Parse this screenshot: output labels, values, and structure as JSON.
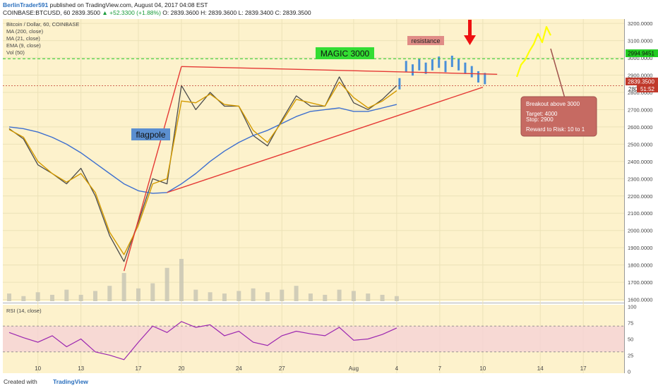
{
  "header": {
    "author": "BerlinTrader591",
    "published": "published on TradingView.com, August 04, 2017 04:08 EST",
    "symbol": "COINBASE:BTCUSD, 60",
    "price": "2839.3500",
    "change": "▲ +52.3300 (+1.88%)",
    "ohlc": "O: 2839.3600  H: 2839.3600  L: 2839.3400  C: 2839.3500"
  },
  "legend": {
    "title": "Bitcoin / Dollar, 60, COINBASE",
    "items": [
      "MA (200, close)",
      "MA (21, close)",
      "EMA (9, close)",
      "Vol (50)"
    ]
  },
  "annotations": {
    "magic": "MAGIC 3000",
    "flagpole": "flagpole",
    "resistance": "resistance",
    "callout": [
      "Breakout above 3000",
      "Target: 4000",
      "Stop: 2900",
      "Reward to Risk: 10 to 1"
    ]
  },
  "price_labels": {
    "magic_line": "2994.9451",
    "last": "2839.3500",
    "countdown": "51:52",
    "partial": "2800"
  },
  "rsi": {
    "title": "RSI (14, close)"
  },
  "footer": {
    "created": "Created with",
    "brand": "TradingView"
  },
  "colors": {
    "background": "#fdf2cc",
    "ma200": "#3d6fcf",
    "ma21": "#d39a00",
    "ema9": "#4b4b4b",
    "trendline": "#e53935",
    "magic_line": "#22cc22",
    "rsi": "#9c27b0",
    "projection": "#ffff00",
    "callout": "#c66a62",
    "consolidation": "#4a8fd8"
  },
  "chart_data": {
    "type": "line",
    "title": "Bitcoin / Dollar, 60, COINBASE",
    "x_tick_labels": [
      "10",
      "13",
      "17",
      "20",
      "24",
      "27",
      "Aug",
      "4",
      "7",
      "10",
      "14",
      "17"
    ],
    "y_tick_labels": [
      "3200.0000",
      "3100.0000",
      "3000.0000",
      "2900.0000",
      "2800.0000",
      "2700.0000",
      "2600.0000",
      "2500.0000",
      "2400.0000",
      "2300.0000",
      "2200.0000",
      "2100.0000",
      "2000.0000",
      "1900.0000",
      "1800.0000",
      "1700.0000",
      "1600.0000"
    ],
    "ylim": [
      1590,
      3225
    ],
    "x_dates": [
      "2017-07-08",
      "2017-07-09",
      "2017-07-10",
      "2017-07-11",
      "2017-07-12",
      "2017-07-13",
      "2017-07-14",
      "2017-07-15",
      "2017-07-16",
      "2017-07-17",
      "2017-07-18",
      "2017-07-19",
      "2017-07-20",
      "2017-07-21",
      "2017-07-22",
      "2017-07-23",
      "2017-07-24",
      "2017-07-25",
      "2017-07-26",
      "2017-07-27",
      "2017-07-28",
      "2017-07-29",
      "2017-07-30",
      "2017-07-31",
      "2017-08-01",
      "2017-08-02",
      "2017-08-03",
      "2017-08-04"
    ],
    "series": [
      {
        "name": "Bitcoin / Dollar, 60, COINBASE",
        "values": [
          2590,
          2530,
          2380,
          2330,
          2270,
          2360,
          2200,
          1970,
          1820,
          2050,
          2300,
          2270,
          2840,
          2700,
          2800,
          2720,
          2720,
          2550,
          2490,
          2640,
          2780,
          2720,
          2720,
          2890,
          2740,
          2700,
          2760,
          2839.35
        ]
      },
      {
        "name": "MA (200, close)",
        "values": [
          2600,
          2590,
          2570,
          2540,
          2500,
          2450,
          2390,
          2330,
          2270,
          2230,
          2215,
          2220,
          2270,
          2330,
          2400,
          2460,
          2510,
          2550,
          2580,
          2620,
          2660,
          2690,
          2700,
          2710,
          2690,
          2690,
          2710,
          2730
        ]
      },
      {
        "name": "MA (21, close)",
        "values": [
          2585,
          2540,
          2400,
          2330,
          2280,
          2330,
          2220,
          1990,
          1860,
          2030,
          2270,
          2300,
          2750,
          2740,
          2790,
          2730,
          2720,
          2580,
          2510,
          2630,
          2760,
          2740,
          2720,
          2860,
          2770,
          2710,
          2750,
          2810
        ]
      }
    ],
    "trendlines": [
      {
        "from": [
          "2017-07-16",
          1765
        ],
        "to": [
          "2017-07-20",
          2950
        ]
      },
      {
        "from": [
          "2017-07-20",
          2950
        ],
        "to": [
          "2017-08-11",
          2905
        ]
      },
      {
        "from": [
          "2017-07-19",
          2220
        ],
        "to": [
          "2017-08-10",
          2830
        ]
      }
    ],
    "consolidation": {
      "values": [
        2850,
        2950,
        2930,
        2960,
        2940,
        2960,
        2975,
        2950,
        2980,
        2960,
        2940,
        2920,
        2890,
        2880
      ]
    },
    "projection": {
      "values": [
        2890,
        2960,
        2990,
        3040,
        3080,
        3140,
        3090,
        3180,
        3130
      ]
    },
    "magic_level": 2994.9451,
    "rsi": {
      "x_tick_labels": [],
      "y_tick_labels": [
        "100",
        "75",
        "50",
        "25",
        "0"
      ],
      "ylim": [
        -3,
        103
      ],
      "values": [
        60,
        52,
        45,
        55,
        38,
        50,
        30,
        25,
        18,
        45,
        70,
        60,
        77,
        68,
        72,
        55,
        62,
        45,
        40,
        55,
        62,
        58,
        55,
        68,
        48,
        50,
        57,
        67
      ]
    },
    "volume": {
      "values": [
        6,
        4,
        7,
        5,
        9,
        5,
        8,
        12,
        22,
        10,
        14,
        26,
        33,
        9,
        7,
        6,
        8,
        10,
        7,
        9,
        12,
        6,
        5,
        9,
        8,
        6,
        5,
        4
      ]
    }
  }
}
